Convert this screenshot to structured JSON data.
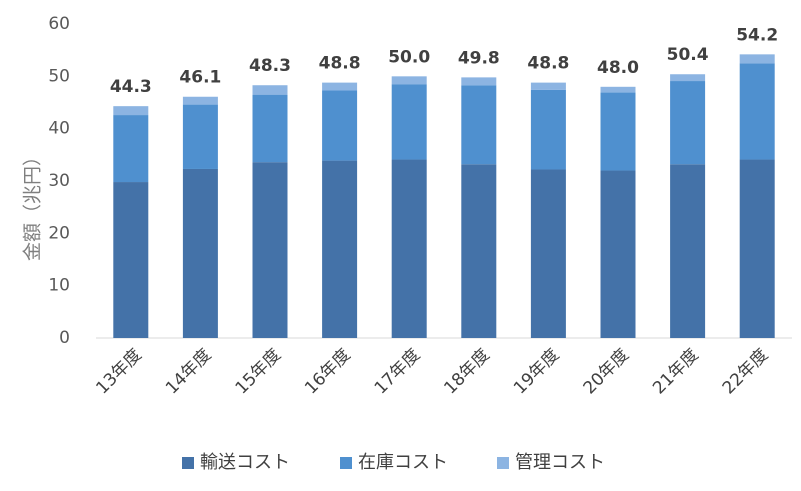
{
  "chart_data": {
    "type": "bar",
    "stacked": true,
    "categories": [
      "13年度",
      "14年度",
      "15年度",
      "16年度",
      "17年度",
      "18年度",
      "19年度",
      "20年度",
      "21年度",
      "22年度"
    ],
    "series": [
      {
        "name": "輸送コスト",
        "color": "#4472a8",
        "values": [
          29.8,
          32.3,
          33.6,
          33.9,
          34.1,
          33.2,
          32.2,
          32.0,
          33.2,
          34.1
        ]
      },
      {
        "name": "在庫コスト",
        "color": "#4f90cf",
        "values": [
          12.8,
          12.3,
          12.9,
          13.4,
          14.4,
          15.1,
          15.2,
          14.9,
          15.9,
          18.4
        ]
      },
      {
        "name": "管理コスト",
        "color": "#8cb4e2",
        "values": [
          1.7,
          1.5,
          1.8,
          1.5,
          1.5,
          1.5,
          1.4,
          1.1,
          1.3,
          1.7
        ]
      }
    ],
    "totals": [
      44.3,
      46.1,
      48.3,
      48.8,
      50.0,
      49.8,
      48.8,
      48.0,
      50.4,
      54.2
    ],
    "totals_display": [
      "44.3",
      "46.1",
      "48.3",
      "48.8",
      "50.0",
      "49.8",
      "48.8",
      "48.0",
      "50.4",
      "54.2"
    ],
    "ylabel": "金額（兆円）",
    "ylim": [
      0,
      60
    ],
    "yticks": [
      "0",
      "10",
      "20",
      "30",
      "40",
      "50",
      "60"
    ],
    "grid": false,
    "legend_position": "bottom"
  }
}
